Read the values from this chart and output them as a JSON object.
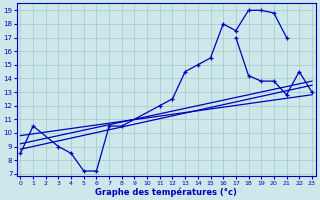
{
  "xlabel": "Graphe des températures (°c)",
  "bg_color": "#cce8eb",
  "line_color": "#0000bb",
  "grid_color": "#b0d0d4",
  "main_curve_x": [
    0,
    1,
    3,
    4,
    5,
    6,
    7,
    8,
    11,
    12,
    13,
    14,
    15,
    16,
    17,
    18,
    19,
    20,
    21
  ],
  "main_curve_y": [
    8.5,
    10.5,
    9.0,
    8.5,
    7.2,
    7.2,
    10.5,
    10.5,
    12.0,
    12.5,
    14.5,
    15.0,
    15.5,
    18.0,
    17.5,
    19.0,
    19.0,
    18.8,
    17.0
  ],
  "right_curve_x": [
    17,
    18,
    19,
    20,
    21,
    22,
    23
  ],
  "right_curve_y": [
    17.0,
    14.2,
    13.8,
    13.8,
    12.8,
    14.5,
    13.0
  ],
  "reg_line1_x": [
    0,
    23
  ],
  "reg_line1_y": [
    8.8,
    13.5
  ],
  "reg_line2_x": [
    0,
    23
  ],
  "reg_line2_y": [
    9.2,
    13.8
  ],
  "reg_line3_x": [
    0,
    23
  ],
  "reg_line3_y": [
    9.8,
    12.8
  ],
  "xlim": [
    -0.3,
    23.3
  ],
  "ylim": [
    6.8,
    19.5
  ],
  "yticks": [
    7,
    8,
    9,
    10,
    11,
    12,
    13,
    14,
    15,
    16,
    17,
    18,
    19
  ],
  "xticks": [
    0,
    1,
    2,
    3,
    4,
    5,
    6,
    7,
    8,
    9,
    10,
    11,
    12,
    13,
    14,
    15,
    16,
    17,
    18,
    19,
    20,
    21,
    22,
    23
  ]
}
